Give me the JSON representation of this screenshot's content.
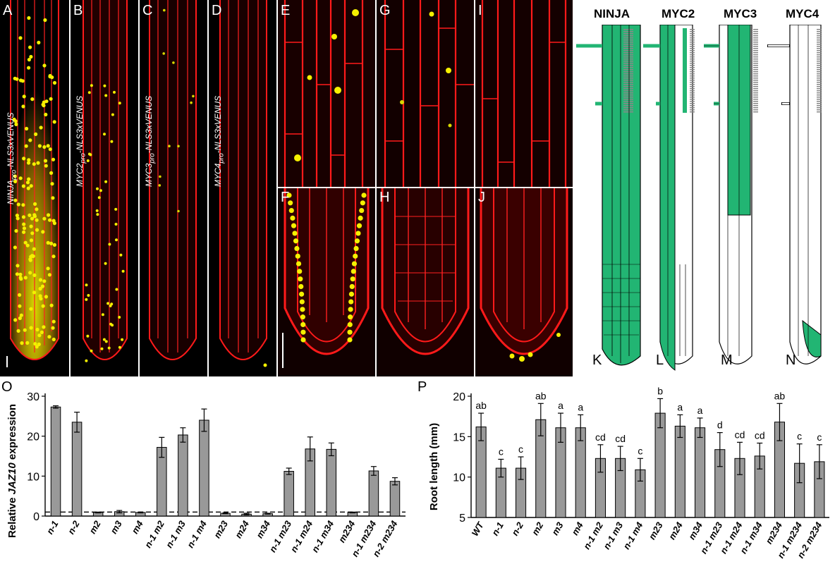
{
  "micro_panels": [
    {
      "id": "A",
      "label": "A",
      "construct_gene": "NINJA",
      "construct_suffix": "-NLS3xVENUS",
      "sub": "pro"
    },
    {
      "id": "B",
      "label": "B",
      "construct_gene": "MYC2",
      "construct_suffix": "-NLS3xVENUS",
      "sub": "pro"
    },
    {
      "id": "C",
      "label": "C",
      "construct_gene": "MYC3",
      "construct_suffix": "-NLS3xVENUS",
      "sub": "pro"
    },
    {
      "id": "D",
      "label": "D",
      "construct_gene": "MYC4",
      "construct_suffix": "-NLS3xVENUS",
      "sub": "pro"
    },
    {
      "id": "E",
      "label": "E"
    },
    {
      "id": "F",
      "label": "F"
    },
    {
      "id": "G",
      "label": "G"
    },
    {
      "id": "H",
      "label": "H"
    },
    {
      "id": "I",
      "label": "I"
    },
    {
      "id": "J",
      "label": "J"
    }
  ],
  "schematics": [
    {
      "header": "NINJA",
      "label": "K"
    },
    {
      "header": "MYC2",
      "label": "L"
    },
    {
      "header": "MYC3",
      "label": "M"
    },
    {
      "header": "MYC4",
      "label": "N"
    }
  ],
  "colors": {
    "expression_green": "#22b573",
    "bar_gray": "#999999",
    "micro_red": "#ff1a1a",
    "micro_yellow": "#f5f000"
  },
  "panel_O": {
    "label": "O",
    "ylabel_prefix": "Relative ",
    "ylabel_gene": "JAZ10",
    "ylabel_suffix": " expression",
    "ylim": [
      0,
      30
    ],
    "yticks": [
      "0",
      "10",
      "20",
      "30"
    ],
    "chart_data": {
      "type": "bar",
      "categories": [
        "n-1",
        "n-2",
        "m2",
        "m3",
        "m4",
        "n-1 m2",
        "n-1 m3",
        "n-1 m4",
        "m23",
        "m24",
        "m34",
        "n-1 m23",
        "n-1 m24",
        "n-1 m34",
        "m234",
        "n-1 m234",
        "n-2 m234"
      ],
      "values": [
        27.3,
        23.5,
        0.9,
        1.1,
        0.9,
        17.2,
        20.3,
        24.0,
        0.7,
        0.5,
        0.6,
        11.2,
        16.8,
        16.7,
        0.9,
        11.3,
        8.7
      ],
      "errors": [
        0.3,
        2.5,
        0.1,
        0.3,
        0.1,
        2.5,
        1.8,
        2.8,
        0.1,
        0.2,
        0.1,
        0.8,
        3.0,
        1.6,
        0.1,
        1.1,
        0.9
      ],
      "reference_line": 1
    }
  },
  "panel_P": {
    "label": "P",
    "ylabel": "Root length (mm)",
    "ylim": [
      5,
      20
    ],
    "yticks": [
      "5",
      "10",
      "15",
      "20"
    ],
    "chart_data": {
      "type": "bar",
      "categories": [
        "WT",
        "n-1",
        "n-2",
        "m2",
        "m3",
        "m4",
        "n-1 m2",
        "n-1 m3",
        "n-1 m4",
        "m23",
        "m24",
        "m34",
        "n-1 m23",
        "n-1 m24",
        "n-1 m34",
        "m234",
        "n-1 m234",
        "n-2 m234"
      ],
      "values": [
        16.2,
        11.1,
        11.1,
        17.1,
        16.1,
        16.1,
        12.3,
        12.3,
        10.9,
        17.9,
        16.3,
        16.1,
        13.4,
        12.3,
        12.6,
        16.8,
        11.7,
        11.9
      ],
      "errors": [
        1.7,
        1.1,
        1.4,
        2.0,
        1.8,
        1.6,
        1.7,
        1.5,
        1.4,
        1.8,
        1.4,
        1.2,
        2.1,
        2.0,
        1.6,
        2.3,
        2.4,
        2.1
      ],
      "groups": [
        "ab",
        "c",
        "c",
        "ab",
        "a",
        "a",
        "cd",
        "cd",
        "c",
        "b",
        "a",
        "a",
        "d",
        "cd",
        "cd",
        "ab",
        "c",
        "c"
      ]
    }
  }
}
